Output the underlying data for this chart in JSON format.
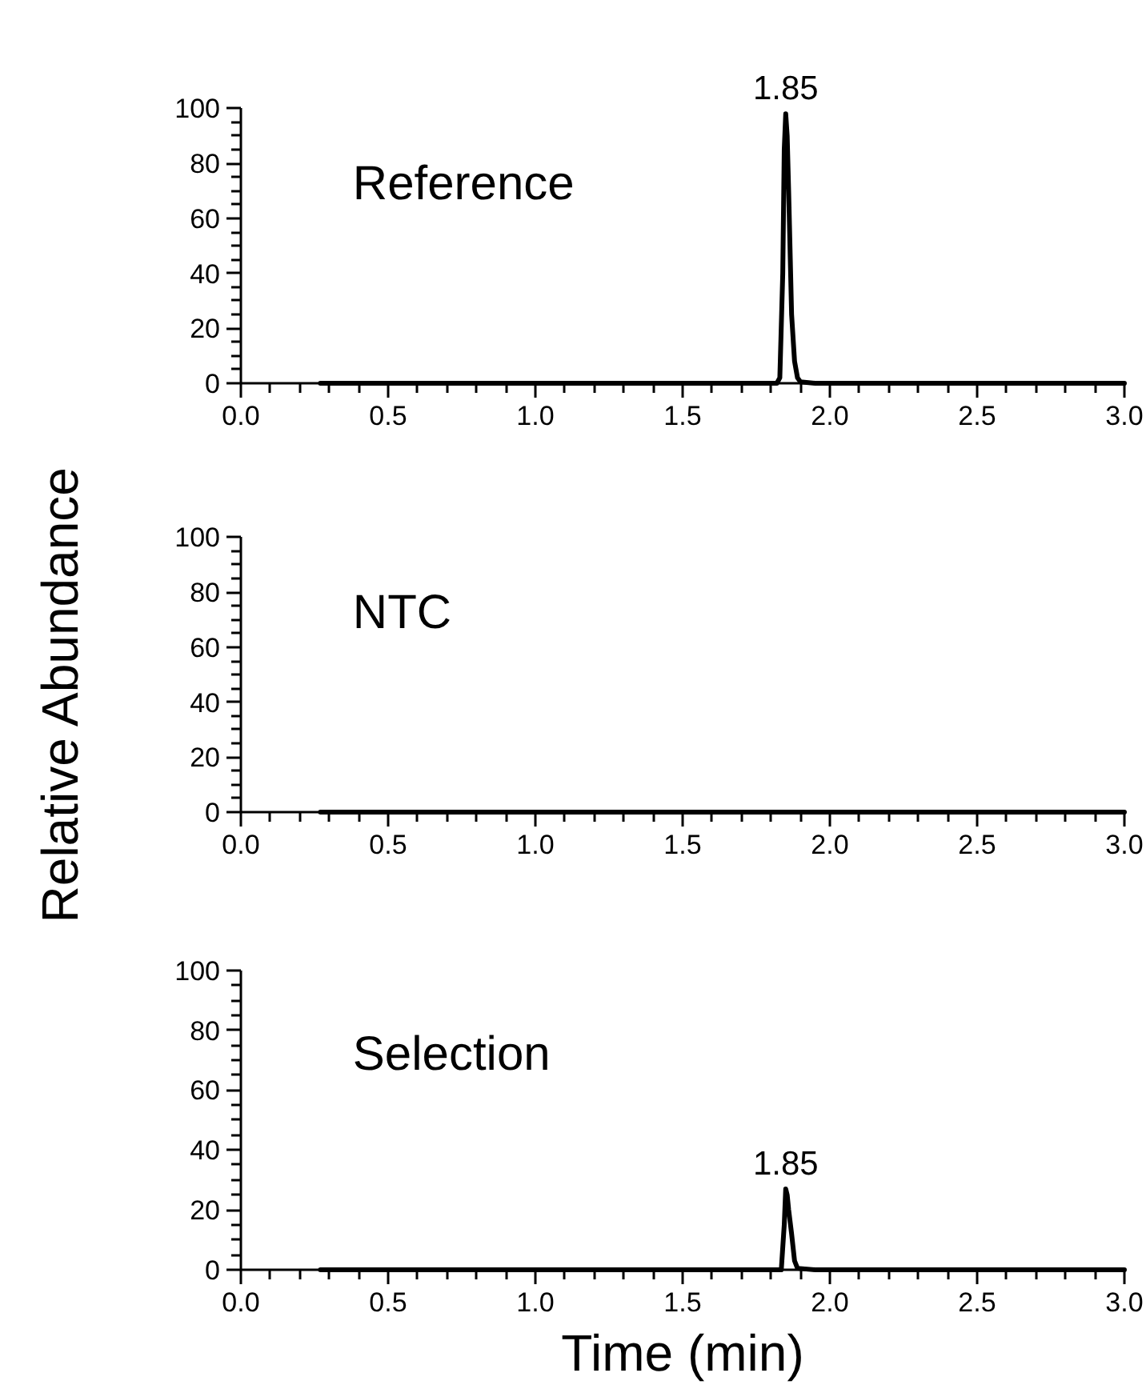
{
  "chart_data": [
    {
      "type": "line",
      "title": "Reference",
      "x": [
        0.27,
        1.8,
        1.82,
        1.83,
        1.84,
        1.845,
        1.85,
        1.855,
        1.86,
        1.87,
        1.88,
        1.89,
        1.9,
        1.95,
        3.0
      ],
      "series": [
        {
          "color": "#000000",
          "values": [
            0,
            0,
            0,
            2,
            40,
            85,
            98,
            90,
            70,
            25,
            8,
            2,
            0.5,
            0,
            0
          ]
        }
      ],
      "xlim": [
        0,
        3
      ],
      "ylim": [
        0,
        100
      ],
      "xticks": [
        {
          "value": 0,
          "label": "0.0"
        },
        0.5,
        {
          "value": 1,
          "label": "1.0"
        },
        1.5,
        {
          "value": 2,
          "label": "2.0"
        },
        2.5,
        {
          "value": 3,
          "label": "3.0"
        }
      ],
      "yticks": [
        0,
        20,
        40,
        60,
        80,
        100
      ],
      "grid": false,
      "annotations": [
        {
          "text": "1.85",
          "x": 1.85,
          "y": 98
        }
      ]
    },
    {
      "type": "line",
      "title": "NTC",
      "ylabel": "Relative Abundance",
      "x": [
        0.27,
        3.0
      ],
      "series": [
        {
          "color": "#000000",
          "values": [
            0,
            0
          ]
        }
      ],
      "xlim": [
        0,
        3
      ],
      "ylim": [
        0,
        100
      ],
      "xticks": [
        {
          "value": 0,
          "label": "0.0"
        },
        0.5,
        {
          "value": 1,
          "label": "1.0"
        },
        1.5,
        {
          "value": 2,
          "label": "2.0"
        },
        2.5,
        {
          "value": 3,
          "label": "3.0"
        }
      ],
      "yticks": [
        0,
        20,
        40,
        60,
        80,
        100
      ],
      "grid": false
    },
    {
      "type": "line",
      "title": "Selection",
      "xlabel": "Time (min)",
      "x": [
        0.27,
        1.82,
        1.835,
        1.845,
        1.85,
        1.855,
        1.86,
        1.87,
        1.88,
        1.89,
        1.95,
        3.0
      ],
      "series": [
        {
          "color": "#000000",
          "values": [
            0,
            0,
            0,
            15,
            27,
            25,
            20,
            12,
            3,
            0.5,
            0,
            0
          ]
        }
      ],
      "xlim": [
        0,
        3
      ],
      "ylim": [
        0,
        100
      ],
      "xticks": [
        {
          "value": 0,
          "label": "0.0"
        },
        0.5,
        {
          "value": 1,
          "label": "1.0"
        },
        1.5,
        {
          "value": 2,
          "label": "2.0"
        },
        2.5,
        {
          "value": 3,
          "label": "3.0"
        }
      ],
      "yticks": [
        0,
        20,
        40,
        60,
        80,
        100
      ],
      "grid": false,
      "annotations": [
        {
          "text": "1.85",
          "x": 1.85,
          "y": 27
        }
      ]
    }
  ]
}
